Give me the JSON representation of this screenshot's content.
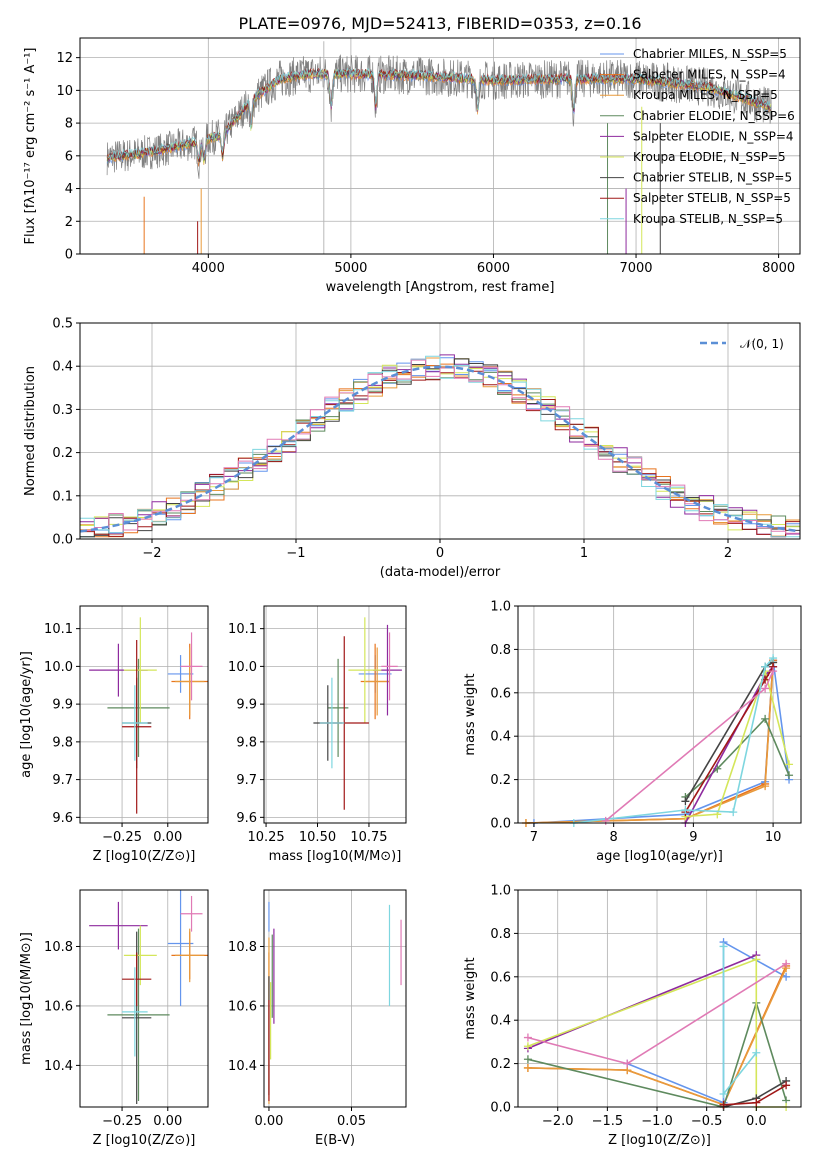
{
  "title": "PLATE=0976, MJD=52413, FIBERID=0353, z=0.16",
  "colors": [
    "#6495ed",
    "#e8741e",
    "#e89a3c",
    "#5e8a5e",
    "#8e2a9e",
    "#d4e65a",
    "#444444",
    "#a01818",
    "#7ed6df"
  ],
  "chart_data": [
    {
      "id": "spectrum",
      "type": "line",
      "title": "PLATE=0976, MJD=52413, FIBERID=0353, z=0.16",
      "xlabel": "wavelength [Angstrom, rest frame]",
      "ylabel": "Flux [fλ10⁻¹⁷ erg cm⁻² s⁻¹ A⁻¹]",
      "xlim": [
        3100,
        8150
      ],
      "ylim": [
        0,
        13.2
      ],
      "xticks": [
        "4000",
        "5000",
        "6000",
        "7000",
        "8000"
      ],
      "yticks": [
        "0",
        "2",
        "4",
        "6",
        "8",
        "10",
        "12"
      ],
      "data_envelope": {
        "x": [
          3290,
          3500,
          3700,
          3900,
          4100,
          4300,
          4500,
          4700,
          5000,
          5500,
          6000,
          6500,
          7000,
          7500,
          7800,
          7950
        ],
        "y": [
          5.9,
          6.1,
          6.4,
          6.8,
          7.3,
          9.4,
          10.7,
          11.0,
          11.0,
          10.9,
          10.6,
          10.7,
          10.7,
          10.2,
          9.4,
          8.9
        ]
      },
      "series": [
        {
          "name": "Chabrier MILES, N_SSP=5"
        },
        {
          "name": "Salpeter MILES, N_SSP=4"
        },
        {
          "name": "Kroupa MILES, N_SSP=5"
        },
        {
          "name": "Chabrier ELODIE, N_SSP=6"
        },
        {
          "name": "Salpeter ELODIE, N_SSP=4"
        },
        {
          "name": "Kroupa ELODIE, N_SSP=5"
        },
        {
          "name": "Chabrier STELIB, N_SSP=5"
        },
        {
          "name": "Salpeter STELIB, N_SSP=5"
        },
        {
          "name": "Kroupa STELIB, N_SSP=5"
        }
      ],
      "legend_position": "right"
    },
    {
      "id": "residuals",
      "type": "histogram",
      "xlabel": "(data-model)/error",
      "ylabel": "Normed distribution",
      "xlim": [
        -2.5,
        2.5
      ],
      "ylim": [
        0,
        0.5
      ],
      "xticks": [
        "−2",
        "−1",
        "0",
        "1",
        "2"
      ],
      "yticks": [
        "0.0",
        "0.1",
        "0.2",
        "0.3",
        "0.4",
        "0.5"
      ],
      "reference": {
        "name": "𝒩(0, 1)",
        "mu": 0,
        "sigma": 1
      },
      "bin_width": 0.1,
      "legend_position": "top-right"
    },
    {
      "id": "age_vs_Z",
      "type": "scatter",
      "xlabel": "Z [log10(Z/Z⊙)]",
      "ylabel": "age  [log10(age/yr)]",
      "xlim": [
        -0.48,
        0.22
      ],
      "ylim": [
        9.585,
        10.16
      ],
      "xticks": [
        "−0.25",
        "0.00"
      ],
      "yticks": [
        "9.6",
        "9.7",
        "9.8",
        "9.9",
        "10.0",
        "10.1"
      ],
      "points": [
        {
          "x": 0.07,
          "y": 9.98,
          "xe": 0.07,
          "ye": 0.05
        },
        {
          "x": 0.12,
          "y": 9.96,
          "xe": 0.1,
          "ye": 0.1
        },
        {
          "x": 0.12,
          "y": 9.96,
          "xe": 0.08,
          "ye": 0.09
        },
        {
          "x": -0.16,
          "y": 9.89,
          "xe": 0.17,
          "ye": 0.13
        },
        {
          "x": -0.27,
          "y": 9.99,
          "xe": 0.16,
          "ye": 0.07
        },
        {
          "x": -0.15,
          "y": 9.99,
          "xe": 0.09,
          "ye": 0.14
        },
        {
          "x": -0.17,
          "y": 9.85,
          "xe": 0.08,
          "ye": 0.12
        },
        {
          "x": -0.17,
          "y": 9.84,
          "xe": 0.08,
          "ye": 0.23
        },
        {
          "x": -0.18,
          "y": 9.85,
          "xe": 0.07,
          "ye": 0.1
        },
        {
          "x": 0.13,
          "y": 10.0,
          "xe": 0.06,
          "ye": 0.09
        }
      ]
    },
    {
      "id": "age_vs_mass",
      "type": "scatter",
      "xlabel": "mass [log10(M/M⊙)]",
      "ylabel": "",
      "xlim": [
        10.24,
        10.93
      ],
      "ylim": [
        9.585,
        10.16
      ],
      "xticks": [
        "10.25",
        "10.50",
        "10.75"
      ],
      "yticks": [
        "9.6",
        "9.7",
        "9.8",
        "9.9",
        "10.0",
        "10.1"
      ],
      "points": [
        {
          "x": 10.78,
          "y": 9.98,
          "xe": 0.08,
          "ye": 0.05
        },
        {
          "x": 10.78,
          "y": 9.96,
          "xe": 0.07,
          "ye": 0.1
        },
        {
          "x": 10.79,
          "y": 9.96,
          "xe": 0.06,
          "ye": 0.09
        },
        {
          "x": 10.6,
          "y": 9.89,
          "xe": 0.05,
          "ye": 0.13
        },
        {
          "x": 10.84,
          "y": 9.99,
          "xe": 0.07,
          "ye": 0.12
        },
        {
          "x": 10.73,
          "y": 9.99,
          "xe": 0.08,
          "ye": 0.14
        },
        {
          "x": 10.55,
          "y": 9.85,
          "xe": 0.07,
          "ye": 0.1
        },
        {
          "x": 10.63,
          "y": 9.85,
          "xe": 0.12,
          "ye": 0.23
        },
        {
          "x": 10.57,
          "y": 9.85,
          "xe": 0.06,
          "ye": 0.12
        },
        {
          "x": 10.85,
          "y": 10.0,
          "xe": 0.04,
          "ye": 0.09
        }
      ]
    },
    {
      "id": "weight_vs_age",
      "type": "line",
      "xlabel": "age  [log10(age/yr)]",
      "ylabel": "mass weight",
      "xlim": [
        6.8,
        10.35
      ],
      "ylim": [
        0,
        1.0
      ],
      "xticks": [
        "7",
        "8",
        "9",
        "10"
      ],
      "yticks": [
        "0.0",
        "0.2",
        "0.4",
        "0.6",
        "0.8",
        "1.0"
      ],
      "series": [
        {
          "x": [
            7.0,
            8.9,
            9.9,
            10.0,
            10.2
          ],
          "y": [
            0.0,
            0.04,
            0.19,
            0.75,
            0.2
          ]
        },
        {
          "x": [
            6.9,
            8.9,
            9.9,
            10.0
          ],
          "y": [
            0.0,
            0.02,
            0.18,
            0.75
          ]
        },
        {
          "x": [
            6.9,
            8.9,
            9.9,
            10.0
          ],
          "y": [
            0.0,
            0.02,
            0.17,
            0.74
          ]
        },
        {
          "x": [
            8.9,
            9.3,
            9.9,
            10.2
          ],
          "y": [
            0.12,
            0.25,
            0.48,
            0.22
          ]
        },
        {
          "x": [
            8.9,
            9.9,
            10.0
          ],
          "y": [
            0.0,
            0.68,
            0.72
          ]
        },
        {
          "x": [
            8.9,
            9.3,
            9.9,
            10.2
          ],
          "y": [
            0.03,
            0.04,
            0.7,
            0.27
          ]
        },
        {
          "x": [
            8.9,
            9.9,
            10.0
          ],
          "y": [
            0.1,
            0.72,
            0.74
          ]
        },
        {
          "x": [
            8.9,
            9.9,
            10.0
          ],
          "y": [
            0.05,
            0.66,
            0.72
          ]
        },
        {
          "x": [
            7.5,
            8.9,
            9.5,
            9.9,
            10.0
          ],
          "y": [
            0.0,
            0.06,
            0.05,
            0.72,
            0.76
          ]
        },
        {
          "x": [
            7.9,
            9.9,
            10.0
          ],
          "y": [
            0.01,
            0.62,
            0.7
          ]
        }
      ]
    },
    {
      "id": "mass_vs_Z",
      "type": "scatter",
      "xlabel": "Z [log10(Z/Z⊙)]",
      "ylabel": "mass [log10(M/M⊙)]",
      "xlim": [
        -0.48,
        0.22
      ],
      "ylim": [
        10.26,
        10.99
      ],
      "xticks": [
        "−0.25",
        "0.00"
      ],
      "yticks": [
        "10.4",
        "10.6",
        "10.8"
      ],
      "points": [
        {
          "x": 0.07,
          "y": 10.81,
          "xe": 0.07,
          "ye": 0.21
        },
        {
          "x": 0.12,
          "y": 10.77,
          "xe": 0.1,
          "ye": 0.08
        },
        {
          "x": 0.12,
          "y": 10.77,
          "xe": 0.08,
          "ye": 0.09
        },
        {
          "x": -0.16,
          "y": 10.57,
          "xe": 0.17,
          "ye": 0.29
        },
        {
          "x": -0.27,
          "y": 10.87,
          "xe": 0.16,
          "ye": 0.08
        },
        {
          "x": -0.15,
          "y": 10.77,
          "xe": 0.09,
          "ye": 0.1
        },
        {
          "x": -0.17,
          "y": 10.56,
          "xe": 0.08,
          "ye": 0.29
        },
        {
          "x": -0.17,
          "y": 10.69,
          "xe": 0.08,
          "ye": 0.09
        },
        {
          "x": -0.18,
          "y": 10.58,
          "xe": 0.07,
          "ye": 0.15
        },
        {
          "x": 0.13,
          "y": 10.91,
          "xe": 0.06,
          "ye": 0.06
        }
      ]
    },
    {
      "id": "mass_vs_ebv",
      "type": "scatter",
      "xlabel": "E(B-V)",
      "ylabel": "",
      "xlim": [
        -0.003,
        0.083
      ],
      "ylim": [
        10.26,
        10.99
      ],
      "xticks": [
        "0.00",
        "0.05"
      ],
      "yticks": [
        "10.4",
        "10.6",
        "10.8"
      ],
      "points": [
        {
          "x": 0.0,
          "y": 10.9,
          "ye": 0.05
        },
        {
          "x": 0.0,
          "y": 10.7,
          "ye": 0.08
        },
        {
          "x": 0.0,
          "y": 10.55,
          "ye": 0.28
        },
        {
          "x": 0.002,
          "y": 10.7,
          "ye": 0.14
        },
        {
          "x": 0.003,
          "y": 10.7,
          "ye": 0.16
        },
        {
          "x": 0.001,
          "y": 10.55,
          "ye": 0.13
        },
        {
          "x": 0.0,
          "y": 10.5,
          "ye": 0.2
        },
        {
          "x": 0.0,
          "y": 10.45,
          "ye": 0.17
        },
        {
          "x": 0.073,
          "y": 10.77,
          "ye": 0.17
        },
        {
          "x": 0.08,
          "y": 10.78,
          "ye": 0.11
        }
      ]
    },
    {
      "id": "weight_vs_Z",
      "type": "line",
      "xlabel": "Z [log10(Z/Z⊙)]",
      "ylabel": "mass weight",
      "xlim": [
        -2.4,
        0.45
      ],
      "ylim": [
        0,
        1.0
      ],
      "xticks": [
        "−2.0",
        "−1.5",
        "−1.0",
        "−0.5",
        "0.0"
      ],
      "yticks": [
        "0.0",
        "0.2",
        "0.4",
        "0.6",
        "0.8",
        "1.0"
      ],
      "series": [
        {
          "x": [
            -1.3,
            -0.33,
            -0.33,
            0.3
          ],
          "y": [
            0.2,
            0.02,
            0.76,
            0.6
          ]
        },
        {
          "x": [
            -2.3,
            -1.3,
            -0.33,
            0.3
          ],
          "y": [
            0.18,
            0.17,
            0.01,
            0.65
          ]
        },
        {
          "x": [
            -2.3,
            -1.3,
            -0.33,
            0.3
          ],
          "y": [
            0.18,
            0.17,
            0.01,
            0.64
          ]
        },
        {
          "x": [
            -2.3,
            -0.33,
            0.0,
            0.3
          ],
          "y": [
            0.22,
            0.0,
            0.48,
            0.03
          ]
        },
        {
          "x": [
            -2.3,
            0.0
          ],
          "y": [
            0.27,
            0.7
          ]
        },
        {
          "x": [
            -2.3,
            0.0,
            0.0,
            0.3
          ],
          "y": [
            0.28,
            0.68,
            0.0,
            0.0
          ]
        },
        {
          "x": [
            -0.33,
            0.0,
            0.3
          ],
          "y": [
            0.0,
            0.04,
            0.12
          ]
        },
        {
          "x": [
            -0.33,
            0.0,
            0.3
          ],
          "y": [
            0.01,
            0.02,
            0.1
          ]
        },
        {
          "x": [
            -0.33,
            -0.33,
            0.0
          ],
          "y": [
            0.74,
            0.06,
            0.25
          ]
        },
        {
          "x": [
            -2.3,
            -1.3,
            0.3
          ],
          "y": [
            0.32,
            0.2,
            0.66
          ]
        }
      ]
    }
  ]
}
